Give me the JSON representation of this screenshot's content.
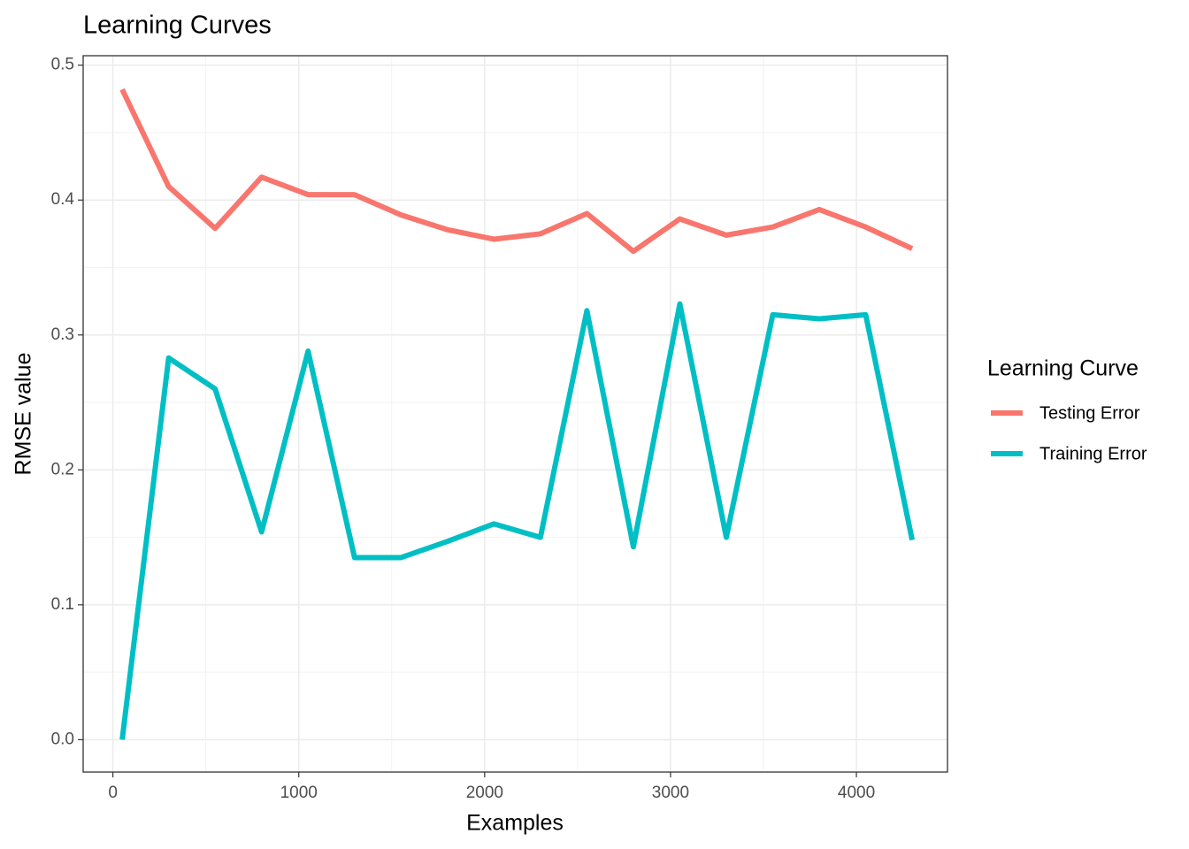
{
  "chart_data": {
    "type": "line",
    "title": "Learning Curves",
    "x_label": "Examples",
    "y_label": "RMSE value",
    "x": [
      50,
      300,
      550,
      800,
      1050,
      1300,
      1550,
      1800,
      2050,
      2300,
      2550,
      2800,
      3050,
      3300,
      3550,
      3800,
      4050,
      4300
    ],
    "series": [
      {
        "name": "Testing Error",
        "color": "#F8766D",
        "values": [
          0.482,
          0.41,
          0.379,
          0.417,
          0.404,
          0.404,
          0.389,
          0.378,
          0.371,
          0.375,
          0.39,
          0.362,
          0.386,
          0.374,
          0.38,
          0.393,
          0.38,
          0.364
        ]
      },
      {
        "name": "Training Error",
        "color": "#00BFC4",
        "values": [
          0.0,
          0.283,
          0.26,
          0.154,
          0.288,
          0.135,
          0.135,
          0.147,
          0.16,
          0.15,
          0.318,
          0.143,
          0.323,
          0.15,
          0.315,
          0.312,
          0.315,
          0.148
        ]
      }
    ],
    "legend_title": "Learning Curve",
    "legend": "right",
    "grid": true,
    "xlim": [
      -160,
      4490
    ],
    "xticks": [
      0,
      1000,
      2000,
      3000,
      4000
    ],
    "ylim": [
      -0.024,
      0.507
    ],
    "yticks": [
      {
        "value": 0,
        "label": "0.0"
      },
      0.1,
      0.2,
      0.3,
      0.4,
      0.5
    ]
  }
}
